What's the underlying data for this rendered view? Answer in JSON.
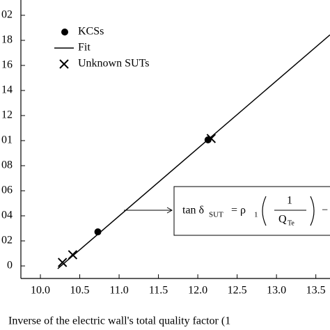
{
  "chart_data": {
    "type": "scatter",
    "x_label": "Inverse of the electric wall's total quality factor (1",
    "xlim": [
      9.752,
      13.68
    ],
    "xticks": [
      {
        "value": 10,
        "label": "10.0"
      },
      10.5,
      {
        "value": 11,
        "label": "11.0"
      },
      11.5,
      {
        "value": 12,
        "label": "12.0"
      },
      12.5,
      {
        "value": 13,
        "label": "13.0"
      },
      13.5
    ],
    "ylim": [
      -0.001,
      0.02122
    ],
    "yticks": [
      0,
      {
        "value": 0.002,
        "label": "02"
      },
      {
        "value": 0.004,
        "label": "04"
      },
      {
        "value": 0.006,
        "label": "06"
      },
      {
        "value": 0.008,
        "label": "08"
      },
      {
        "value": 0.01,
        "label": "01"
      },
      {
        "value": 0.012,
        "label": "12"
      },
      {
        "value": 0.014,
        "label": "14"
      },
      {
        "value": 0.016,
        "label": "16"
      },
      {
        "value": 0.018,
        "label": "18"
      },
      {
        "value": 0.02,
        "label": "02"
      }
    ],
    "legend": "upper left",
    "series": [
      {
        "name": "KCSs",
        "color": "#000000",
        "marker": "circle",
        "x": [
          10.73,
          12.13
        ],
        "values": [
          0.00272,
          0.01006
        ]
      },
      {
        "name": "Fit",
        "color": "#000000",
        "marker": "line",
        "x": [
          10.22,
          13.68
        ],
        "values": [
          -0.00022,
          0.01844
        ]
      },
      {
        "name": "Unknown SUTs",
        "color": "#000000",
        "marker": "x",
        "x": [
          10.28,
          10.41,
          12.17
        ],
        "values": [
          0.00028,
          0.00089,
          0.01017
        ]
      }
    ],
    "annotation": {
      "lhs": "tan δ",
      "lhs_sub": "SUT",
      "rhs": "= ρ",
      "rhs_sub": "1",
      "numerator": "1",
      "denominator": "Q",
      "denominator_sub": "Te",
      "tail": "−"
    }
  }
}
